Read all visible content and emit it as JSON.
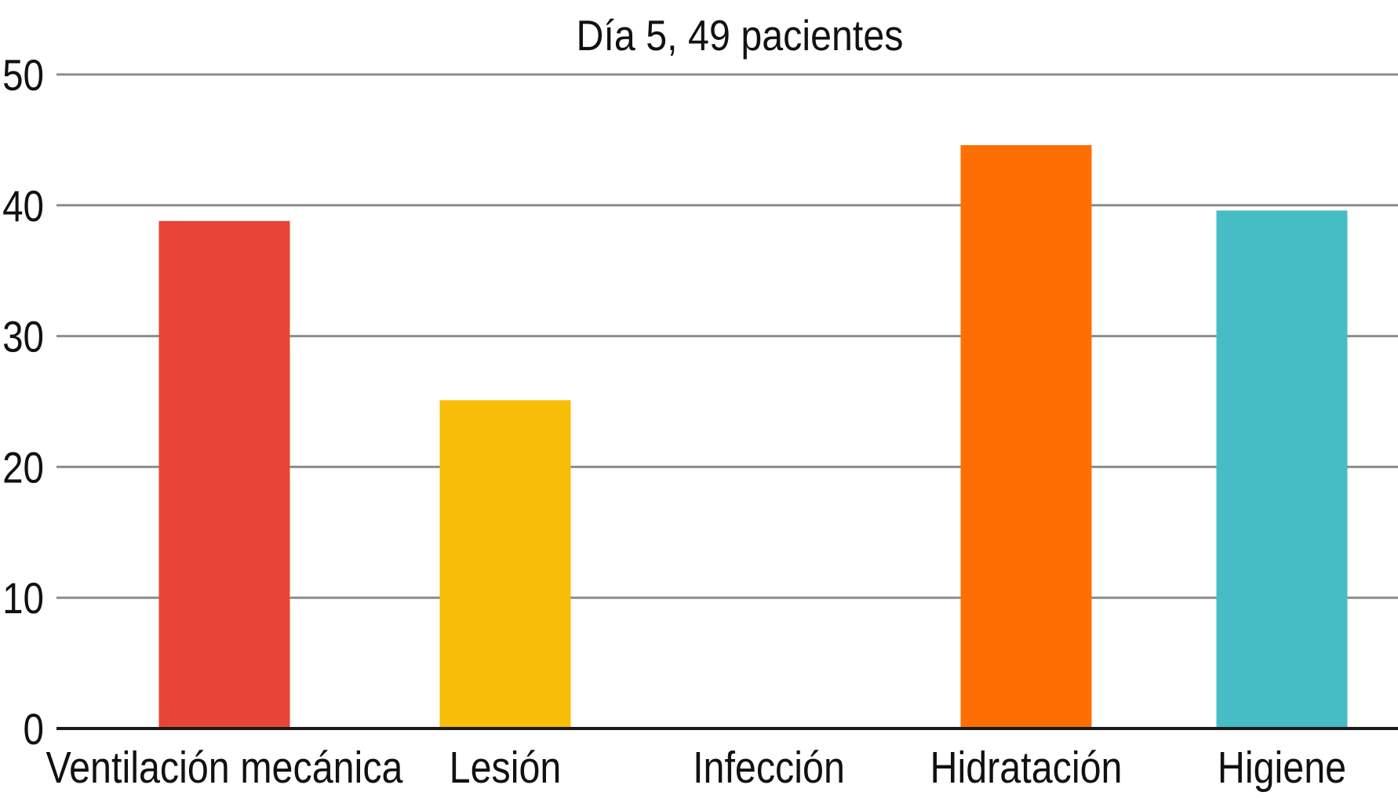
{
  "chart_data": {
    "type": "bar",
    "title": "Día 5, 49 pacientes",
    "xlabel": "",
    "ylabel": "",
    "categories": [
      "Ventilación mecánica",
      "Lesión",
      "Infección",
      "Hidratación",
      "Higiene"
    ],
    "values": [
      38.8,
      25.1,
      0,
      44.6,
      39.6
    ],
    "colors": [
      "#E94536",
      "#F7BD07",
      "#FFFFFF",
      "#FF6E02",
      "#46BCC4"
    ],
    "ylim": [
      0,
      50
    ],
    "yticks": [
      0,
      10,
      20,
      30,
      40,
      50
    ],
    "grid": true,
    "grid_color": "#8C8C8C",
    "axis_color": "#1A1A1A",
    "legend": "none"
  }
}
